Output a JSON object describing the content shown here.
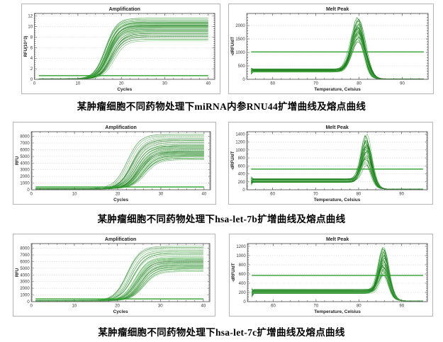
{
  "style": {
    "curve_green_dark": "#0b6e0b",
    "curve_green_light": "#63bb63",
    "threshold_green": "#2fa02f",
    "grid_color": "#bbbbbb",
    "frame_color": "#555555",
    "tick_text_color": "#333333",
    "title_text_color": "#222222",
    "panel_border": "#b4b4b4"
  },
  "figure": {
    "rows": [
      {
        "caption": "某肿瘤细胞不同药物处理下miRNA内参RNU44扩增曲线及熔点曲线"
      },
      {
        "caption": "某肿瘤细胞不同药物处理下hsa-let-7b扩增曲线及熔点曲线"
      },
      {
        "caption": "某肿瘤细胞不同药物处理下hsa-let-7c扩增曲线及熔点曲线"
      }
    ]
  },
  "chart_data": [
    {
      "id": "rnu44-amplification",
      "type": "line",
      "kind": "amplification",
      "title": "Amplification",
      "xlabel": "Cycles",
      "ylabel": "RFU(10^3)",
      "xlim": [
        0,
        41.5
      ],
      "ylim": [
        0,
        12.5
      ],
      "xticks": [
        0,
        10,
        20,
        30,
        40
      ],
      "yticks": [
        0,
        2,
        4,
        6,
        8,
        10,
        12
      ],
      "x_minor_step": 2,
      "xdata": [
        1,
        40
      ],
      "threshold": 0.7,
      "baseline": 0.07,
      "slope": 1.3,
      "plateaus": [
        11.6,
        11.4,
        11.2,
        11.05,
        10.9,
        10.8,
        10.7,
        10.6,
        10.5,
        10.4,
        10.3,
        10.2,
        10.1,
        10.0,
        9.9,
        9.8,
        9.7,
        9.6,
        9.5,
        9.35,
        9.2,
        9.1,
        9.0,
        8.85,
        8.7,
        8.5,
        8.3,
        8.1,
        7.9,
        7.6,
        7.3
      ],
      "cts": [
        16.3,
        16.4,
        16.5,
        16.6,
        16.6,
        16.7,
        16.7,
        16.8,
        16.8,
        16.8,
        16.9,
        16.9,
        17.0,
        17.0,
        17.1,
        17.1,
        17.2,
        17.2,
        17.3,
        17.3,
        17.4,
        17.4,
        17.5,
        17.5,
        17.6,
        17.7,
        17.8,
        17.9,
        18.0,
        18.1,
        18.2
      ]
    },
    {
      "id": "rnu44-melt-peak",
      "type": "line",
      "kind": "melt",
      "title": "Melt Peak",
      "xlabel": "Temperature, Celsius",
      "ylabel": "-dRFU/dT",
      "xlim": [
        54,
        96
      ],
      "ylim": [
        0,
        2450
      ],
      "xticks": [
        60,
        70,
        80,
        90
      ],
      "yticks": [
        0,
        500,
        1000,
        1500,
        2000
      ],
      "x_minor_step": 2,
      "xdata": [
        55,
        95
      ],
      "threshold": 1020,
      "baseline": 310,
      "peak_temp": 79.8,
      "peak_sigma": 1.45,
      "peaks": [
        2300,
        2260,
        2220,
        2180,
        2140,
        2100,
        2070,
        2040,
        2010,
        1980,
        1950,
        1930,
        1910,
        1890,
        1870,
        1850,
        1830,
        1810,
        1790,
        1770,
        1750,
        1730,
        1700,
        1670,
        1640,
        1610,
        1580,
        1550,
        1500,
        1450,
        1400
      ]
    },
    {
      "id": "hsa-let-7b-amplification",
      "type": "line",
      "kind": "amplification",
      "title": "Amplification",
      "xlabel": "Cycles",
      "ylabel": "RFU",
      "xlim": [
        0,
        41.5
      ],
      "ylim": [
        0,
        8700
      ],
      "xticks": [
        0,
        10,
        20,
        30,
        40
      ],
      "yticks": [
        0,
        1000,
        2000,
        3000,
        4000,
        5000,
        6000,
        7000,
        8000
      ],
      "x_minor_step": 2,
      "xdata": [
        1,
        40
      ],
      "threshold": 420,
      "baseline": 140,
      "slope": 1.5,
      "plateaus": [
        8300,
        8100,
        7900,
        7700,
        7500,
        7350,
        7200,
        7050,
        6900,
        6750,
        6600,
        6500,
        6400,
        6300,
        6200,
        6100,
        6000,
        5900,
        5800,
        5700,
        5600,
        5500,
        5400,
        5300,
        5200,
        5100,
        5000,
        4900,
        4750,
        4600,
        4500
      ],
      "cts": [
        22.3,
        22.5,
        22.7,
        23.0,
        23.2,
        23.3,
        23.5,
        23.7,
        23.8,
        24.0,
        24.1,
        24.3,
        24.4,
        24.5,
        24.6,
        24.7,
        24.8,
        24.9,
        25.0,
        25.1,
        25.2,
        25.3,
        25.4,
        25.6,
        25.7,
        25.8,
        25.9,
        26.0,
        26.2,
        26.3,
        26.4
      ]
    },
    {
      "id": "hsa-let-7b-melt-peak",
      "type": "line",
      "kind": "melt",
      "title": "Melt Peak",
      "xlabel": "Temperature, Celsius",
      "ylabel": "-dRFU/dT",
      "xlim": [
        54,
        96
      ],
      "ylim": [
        0,
        1460
      ],
      "xticks": [
        60,
        70,
        80,
        90
      ],
      "yticks": [
        0,
        200,
        400,
        600,
        800,
        1000,
        1200,
        1400
      ],
      "x_minor_step": 2,
      "xdata": [
        55,
        95
      ],
      "threshold": 520,
      "baseline": 215,
      "peak_temp": 81.8,
      "peak_sigma": 1.1,
      "peaks": [
        1400,
        1370,
        1340,
        1310,
        1280,
        1260,
        1240,
        1220,
        1200,
        1180,
        1160,
        1140,
        1120,
        1100,
        1080,
        1060,
        1040,
        1020,
        1000,
        980,
        950,
        920,
        890,
        860,
        830,
        800,
        770,
        740,
        700,
        660,
        620
      ]
    },
    {
      "id": "hsa-let-7c-amplification",
      "type": "line",
      "kind": "amplification",
      "title": "Amplification",
      "xlabel": "Cycles",
      "ylabel": "RFU",
      "xlim": [
        0,
        41.5
      ],
      "ylim": [
        0,
        8700
      ],
      "xticks": [
        0,
        10,
        20,
        30,
        40
      ],
      "yticks": [
        0,
        1000,
        2000,
        3000,
        4000,
        5000,
        6000,
        7000,
        8000
      ],
      "x_minor_step": 2,
      "xdata": [
        1,
        40
      ],
      "threshold": 400,
      "baseline": 130,
      "slope": 1.5,
      "plateaus": [
        8300,
        8100,
        7900,
        7700,
        7500,
        7350,
        7200,
        7050,
        6900,
        6750,
        6600,
        6500,
        6400,
        6300,
        6200,
        6100,
        6000,
        5900,
        5800,
        5700,
        5600,
        5500,
        5400,
        5300,
        5200,
        5100,
        5000,
        4900,
        4750,
        4600,
        4500
      ],
      "cts": [
        22.3,
        22.5,
        22.7,
        23.0,
        23.2,
        23.3,
        23.5,
        23.7,
        23.8,
        24.0,
        24.1,
        24.3,
        24.4,
        24.5,
        24.6,
        24.7,
        24.8,
        24.9,
        25.0,
        25.1,
        25.2,
        25.3,
        25.4,
        25.6,
        25.7,
        25.8,
        25.9,
        26.0,
        26.2,
        26.3,
        26.4
      ]
    },
    {
      "id": "hsa-let-7c-melt-peak",
      "type": "line",
      "kind": "melt",
      "title": "Melt Peak",
      "xlabel": "Temperature, Celsius",
      "ylabel": "-dRFU/dT",
      "xlim": [
        54,
        96
      ],
      "ylim": [
        0,
        1260
      ],
      "xticks": [
        60,
        70,
        80,
        90
      ],
      "yticks": [
        0,
        200,
        400,
        600,
        800,
        1000,
        1200
      ],
      "x_minor_step": 2,
      "xdata": [
        55,
        95
      ],
      "threshold": 570,
      "baseline": 205,
      "peak_temp": 85.8,
      "peak_sigma": 1.1,
      "peaks": [
        1190,
        1165,
        1140,
        1115,
        1090,
        1070,
        1050,
        1030,
        1010,
        990,
        970,
        950,
        930,
        910,
        890,
        870,
        850,
        830,
        810,
        790,
        770,
        750,
        730,
        710,
        690,
        670,
        650,
        630,
        610,
        590,
        570
      ]
    }
  ]
}
